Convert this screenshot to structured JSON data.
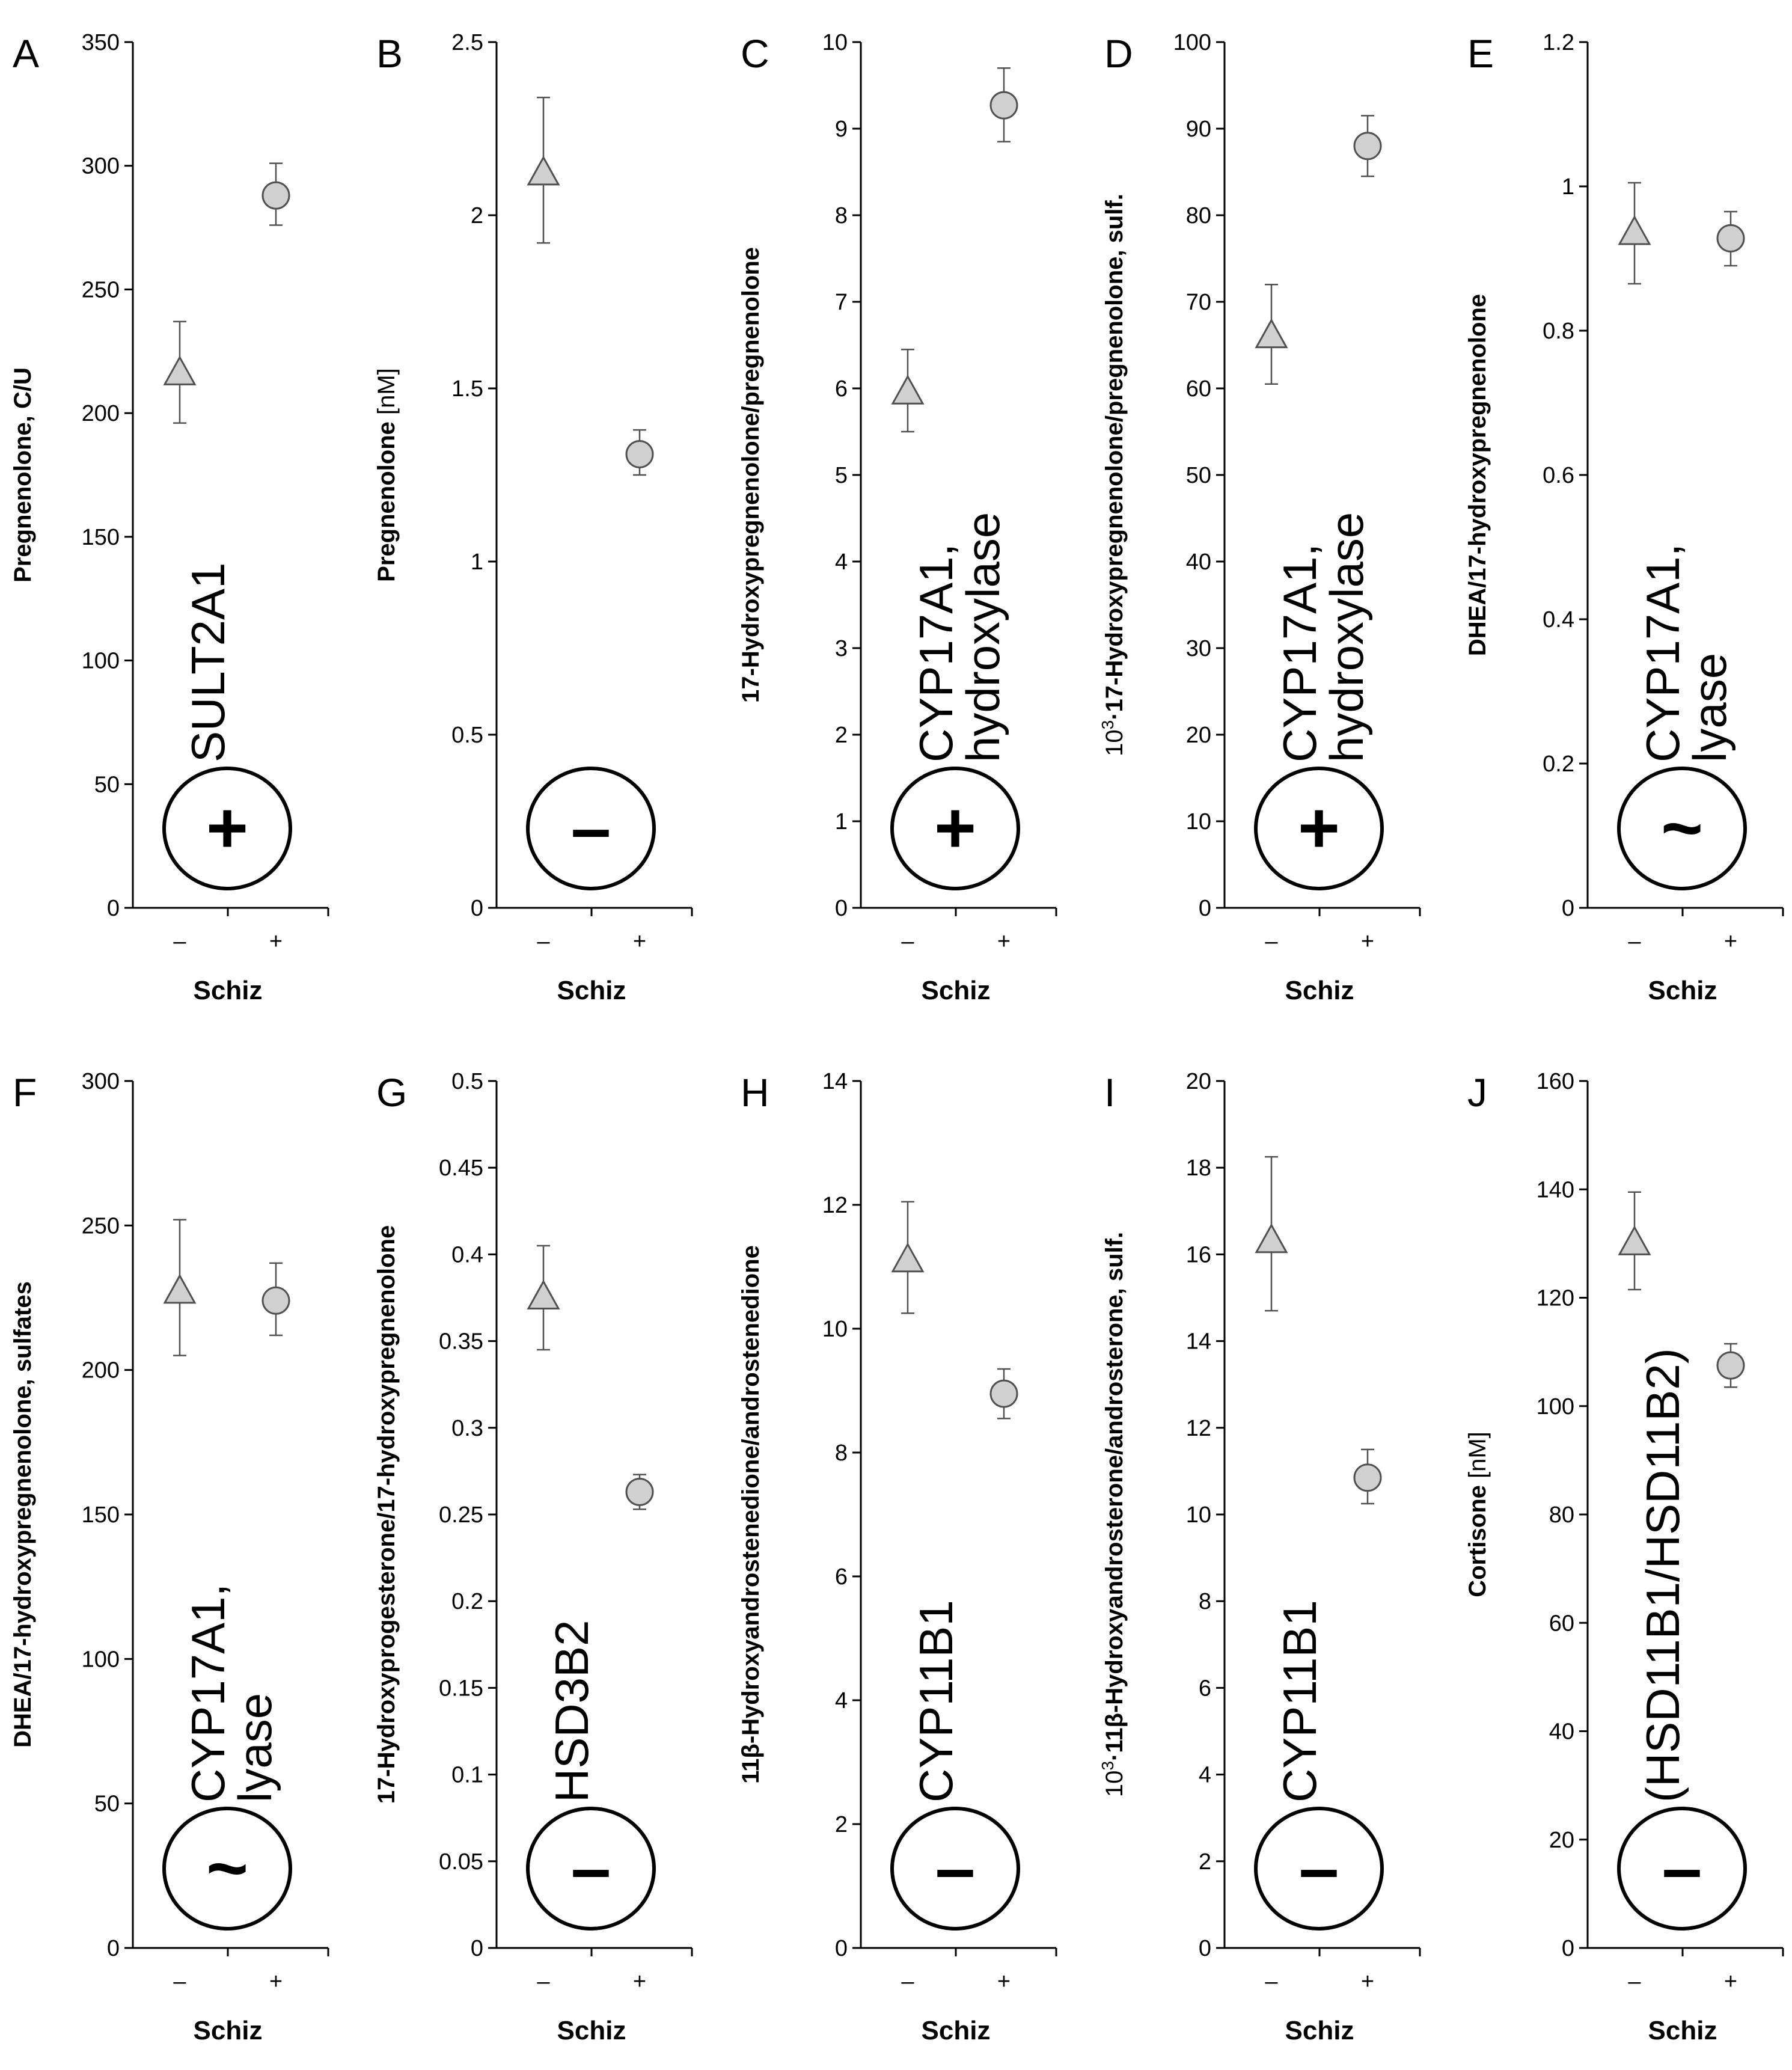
{
  "x_axis_label": "Schiz",
  "group_labels": [
    "–",
    "+"
  ],
  "colors": {
    "marker_fill": "#d0d0d0",
    "marker_stroke": "#505050",
    "axis": "#000000"
  },
  "chart_data": [
    {
      "panel": "A",
      "type": "scatter",
      "ylabel": "Pregnenolone, C/U",
      "ylim": [
        0,
        350
      ],
      "yticks": [
        "0",
        "50",
        "100",
        "150",
        "200",
        "250",
        "300",
        "350"
      ],
      "series": [
        {
          "group": "–",
          "marker": "triangle",
          "value": 216,
          "low": 196,
          "high": 237
        },
        {
          "group": "+",
          "marker": "circle",
          "value": 288,
          "low": 276,
          "high": 301
        }
      ],
      "enzyme": [
        "SULT2A1"
      ],
      "effect": "+"
    },
    {
      "panel": "B",
      "type": "scatter",
      "ylabel": "Pregnenolone",
      "ylabel_unit": " [nM]",
      "ylim": [
        0,
        2.5
      ],
      "yticks": [
        "0",
        "0.5",
        "1",
        "1.5",
        "2",
        "2.5"
      ],
      "series": [
        {
          "group": "–",
          "marker": "triangle",
          "value": 2.12,
          "low": 1.92,
          "high": 2.34
        },
        {
          "group": "+",
          "marker": "circle",
          "value": 1.31,
          "low": 1.25,
          "high": 1.38
        }
      ],
      "enzyme": [],
      "effect": "–"
    },
    {
      "panel": "C",
      "type": "scatter",
      "ylabel": "17-Hydroxypregnenolone/pregnenolone",
      "ylim": [
        0,
        10
      ],
      "yticks": [
        "0",
        "1",
        "2",
        "3",
        "4",
        "5",
        "6",
        "7",
        "8",
        "9",
        "10"
      ],
      "series": [
        {
          "group": "–",
          "marker": "triangle",
          "value": 5.95,
          "low": 5.5,
          "high": 6.45
        },
        {
          "group": "+",
          "marker": "circle",
          "value": 9.27,
          "low": 8.85,
          "high": 9.7
        }
      ],
      "enzyme": [
        "CYP17A1,",
        "hydroxylase"
      ],
      "effect": "+"
    },
    {
      "panel": "D",
      "type": "scatter",
      "ylabel_prefix": "10",
      "ylabel_sup": "3",
      "ylabel": "·17-Hydroxypregnenolone/pregnenolone, sulf.",
      "ylim": [
        0,
        100
      ],
      "yticks": [
        "0",
        "10",
        "20",
        "30",
        "40",
        "50",
        "60",
        "70",
        "80",
        "90",
        "100"
      ],
      "series": [
        {
          "group": "–",
          "marker": "triangle",
          "value": 66,
          "low": 60.5,
          "high": 72
        },
        {
          "group": "+",
          "marker": "circle",
          "value": 88,
          "low": 84.5,
          "high": 91.5
        }
      ],
      "enzyme": [
        "CYP17A1,",
        "hydroxylase"
      ],
      "effect": "+"
    },
    {
      "panel": "E",
      "type": "scatter",
      "ylabel": "DHEA/17-hydroxypregnenolone",
      "ylim": [
        0,
        1.2
      ],
      "yticks": [
        "0",
        "0.2",
        "0.4",
        "0.6",
        "0.8",
        "1",
        "1.2"
      ],
      "series": [
        {
          "group": "–",
          "marker": "triangle",
          "value": 0.935,
          "low": 0.865,
          "high": 1.005
        },
        {
          "group": "+",
          "marker": "circle",
          "value": 0.928,
          "low": 0.89,
          "high": 0.965
        }
      ],
      "enzyme": [
        "CYP17A1,",
        "lyase"
      ],
      "effect": "~"
    },
    {
      "panel": "F",
      "type": "scatter",
      "ylabel": "DHEA/17-hydroxypregnenolone, sulfates",
      "ylim": [
        0,
        300
      ],
      "yticks": [
        "0",
        "50",
        "100",
        "150",
        "200",
        "250",
        "300"
      ],
      "series": [
        {
          "group": "–",
          "marker": "triangle",
          "value": 227,
          "low": 205,
          "high": 252
        },
        {
          "group": "+",
          "marker": "circle",
          "value": 224,
          "low": 212,
          "high": 237
        }
      ],
      "enzyme": [
        "CYP17A1,",
        "lyase"
      ],
      "effect": "~"
    },
    {
      "panel": "G",
      "type": "scatter",
      "ylabel": "17-Hydroxyprogesterone/17-hydroxypregnenolone",
      "ylim": [
        0,
        0.5
      ],
      "yticks": [
        "0",
        "0.05",
        "0.1",
        "0.15",
        "0.2",
        "0.25",
        "0.3",
        "0.35",
        "0.4",
        "0.45",
        "0.5"
      ],
      "series": [
        {
          "group": "–",
          "marker": "triangle",
          "value": 0.375,
          "low": 0.345,
          "high": 0.405
        },
        {
          "group": "+",
          "marker": "circle",
          "value": 0.263,
          "low": 0.253,
          "high": 0.273
        }
      ],
      "enzyme": [
        "HSD3B2"
      ],
      "effect": "–"
    },
    {
      "panel": "H",
      "type": "scatter",
      "ylabel": "11β-Hydroxyandrostenedione/androstenedione",
      "ylim": [
        0,
        14
      ],
      "yticks": [
        "0",
        "2",
        "4",
        "6",
        "8",
        "10",
        "12",
        "14"
      ],
      "series": [
        {
          "group": "–",
          "marker": "triangle",
          "value": 11.1,
          "low": 10.25,
          "high": 12.05
        },
        {
          "group": "+",
          "marker": "circle",
          "value": 8.95,
          "low": 8.55,
          "high": 9.35
        }
      ],
      "enzyme": [
        "CYP11B1"
      ],
      "effect": "–"
    },
    {
      "panel": "I",
      "type": "scatter",
      "ylabel_prefix": "10",
      "ylabel_sup": "3",
      "ylabel": "·11β-Hydroxyandrosterone/androsterone, sulf.",
      "ylim": [
        0,
        20
      ],
      "yticks": [
        "0",
        "2",
        "4",
        "6",
        "8",
        "10",
        "12",
        "14",
        "16",
        "18",
        "20"
      ],
      "series": [
        {
          "group": "–",
          "marker": "triangle",
          "value": 16.3,
          "low": 14.7,
          "high": 18.25
        },
        {
          "group": "+",
          "marker": "circle",
          "value": 10.85,
          "low": 10.25,
          "high": 11.5
        }
      ],
      "enzyme": [
        "CYP11B1"
      ],
      "effect": "–"
    },
    {
      "panel": "J",
      "type": "scatter",
      "ylabel": "Cortisone",
      "ylabel_unit": " [nM]",
      "ylim": [
        0,
        160
      ],
      "yticks": [
        "0",
        "20",
        "40",
        "60",
        "80",
        "100",
        "120",
        "140",
        "160"
      ],
      "series": [
        {
          "group": "–",
          "marker": "triangle",
          "value": 130,
          "low": 121.5,
          "high": 139.5
        },
        {
          "group": "+",
          "marker": "circle",
          "value": 107.5,
          "low": 103.5,
          "high": 111.5
        }
      ],
      "enzyme": [
        "(HSD11B1/HSD11B2)"
      ],
      "effect": "–"
    }
  ]
}
